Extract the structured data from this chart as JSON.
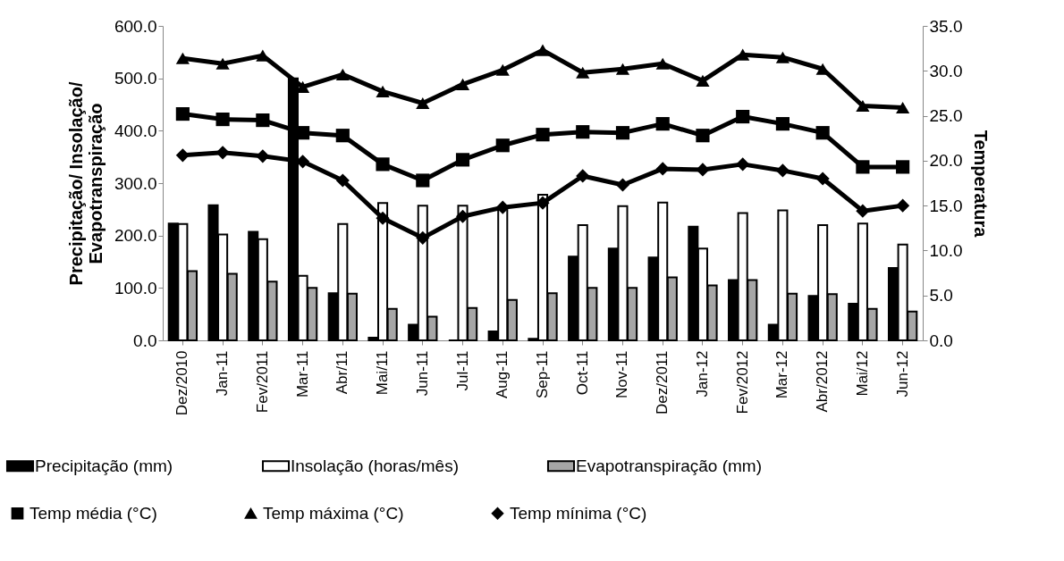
{
  "chart_data": {
    "type": "bar",
    "ylabel": "Precipitação/ Insolação/\nEvapotranspiração",
    "y2label": "Temperatura",
    "categories": [
      "Dez/2010",
      "Jan-11",
      "Fev/2011",
      "Mar-11",
      "Abr/11",
      "Mai/11",
      "Jun-11",
      "Jul-11",
      "Aug-11",
      "Sep-11",
      "Oct-11",
      "Nov-11",
      "Dez/2011",
      "Jan-12",
      "Fev/2012",
      "Mar-12",
      "Abr/2012",
      "Mai/12",
      "Jun-12"
    ],
    "series": [
      {
        "name": "Precipitação (mm)",
        "type": "bar",
        "color": "#000000",
        "values": [
          223,
          258,
          207,
          500,
          90,
          5,
          30,
          0,
          17,
          3,
          160,
          175,
          158,
          217,
          115,
          30,
          85,
          70,
          138
        ]
      },
      {
        "name": "Insolação (horas/mês)",
        "type": "bar",
        "color": "#ffffff",
        "values": [
          222,
          202,
          193,
          123,
          222,
          262,
          257,
          257,
          252,
          278,
          220,
          256,
          263,
          175,
          243,
          248,
          220,
          223,
          183
        ]
      },
      {
        "name": "Evapotranspiração (mm)",
        "type": "bar",
        "color": "#a6a6a6",
        "values": [
          132,
          127,
          112,
          100,
          89,
          60,
          45,
          62,
          77,
          90,
          100,
          100,
          120,
          105,
          115,
          89,
          88,
          60,
          55
        ]
      },
      {
        "name": "Temp média (°C)",
        "type": "line",
        "axis": "y2",
        "marker": "square",
        "color": "#000000",
        "values": [
          25.2,
          24.6,
          24.5,
          23.1,
          22.8,
          19.6,
          17.8,
          20.1,
          21.7,
          22.9,
          23.2,
          23.1,
          24.1,
          22.8,
          24.9,
          24.1,
          23.1,
          19.3,
          19.3
        ]
      },
      {
        "name": "Temp máxima (°C)",
        "type": "line",
        "axis": "y2",
        "marker": "triangle",
        "color": "#000000",
        "values": [
          31.4,
          30.8,
          31.7,
          28.2,
          29.6,
          27.7,
          26.4,
          28.5,
          30.1,
          32.3,
          29.8,
          30.2,
          30.8,
          28.9,
          31.8,
          31.5,
          30.2,
          26.1,
          25.9
        ]
      },
      {
        "name": "Temp mínima (°C)",
        "type": "line",
        "axis": "y2",
        "marker": "diamond",
        "color": "#000000",
        "values": [
          20.6,
          20.9,
          20.5,
          19.9,
          17.8,
          13.6,
          11.4,
          13.8,
          14.8,
          15.3,
          18.3,
          17.3,
          19.1,
          19.0,
          19.6,
          18.9,
          18.0,
          14.4,
          15.0
        ]
      }
    ],
    "ylim": [
      0,
      600
    ],
    "yticks": [
      {
        "value": 0,
        "label": "0.0"
      },
      {
        "value": 100,
        "label": "100.0"
      },
      {
        "value": 200,
        "label": "200.0"
      },
      {
        "value": 300,
        "label": "300.0"
      },
      {
        "value": 400,
        "label": "400.0"
      },
      {
        "value": 500,
        "label": "500.0"
      },
      {
        "value": 600,
        "label": "600.0"
      }
    ],
    "y2lim": [
      0,
      35
    ],
    "y2ticks": [
      {
        "value": 0,
        "label": "0.0"
      },
      {
        "value": 5,
        "label": "5.0"
      },
      {
        "value": 10,
        "label": "10.0"
      },
      {
        "value": 15,
        "label": "15.0"
      },
      {
        "value": 20,
        "label": "20.0"
      },
      {
        "value": 25,
        "label": "25.0"
      },
      {
        "value": 30,
        "label": "30.0"
      },
      {
        "value": 35,
        "label": "35.0"
      }
    ],
    "grid": false,
    "legend": "bottom"
  }
}
